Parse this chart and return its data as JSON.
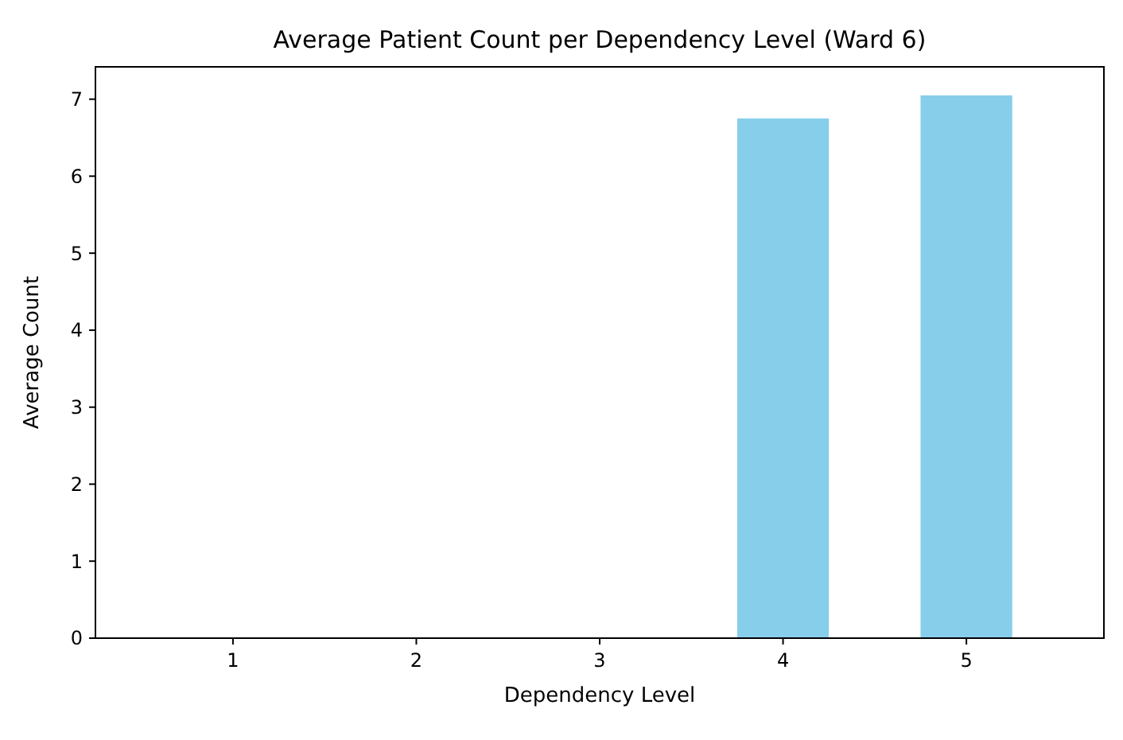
{
  "chart_data": {
    "type": "bar",
    "title": "Average Patient Count per Dependency Level (Ward 6)",
    "xlabel": "Dependency Level",
    "ylabel": "Average Count",
    "categories": [
      "1",
      "2",
      "3",
      "4",
      "5"
    ],
    "values": [
      0,
      0,
      0,
      6.75,
      7.05
    ],
    "color": "#87ceeb",
    "ylim": [
      0,
      7.42
    ],
    "yticks": [
      0,
      1,
      2,
      3,
      4,
      5,
      6,
      7
    ],
    "grid": false
  }
}
